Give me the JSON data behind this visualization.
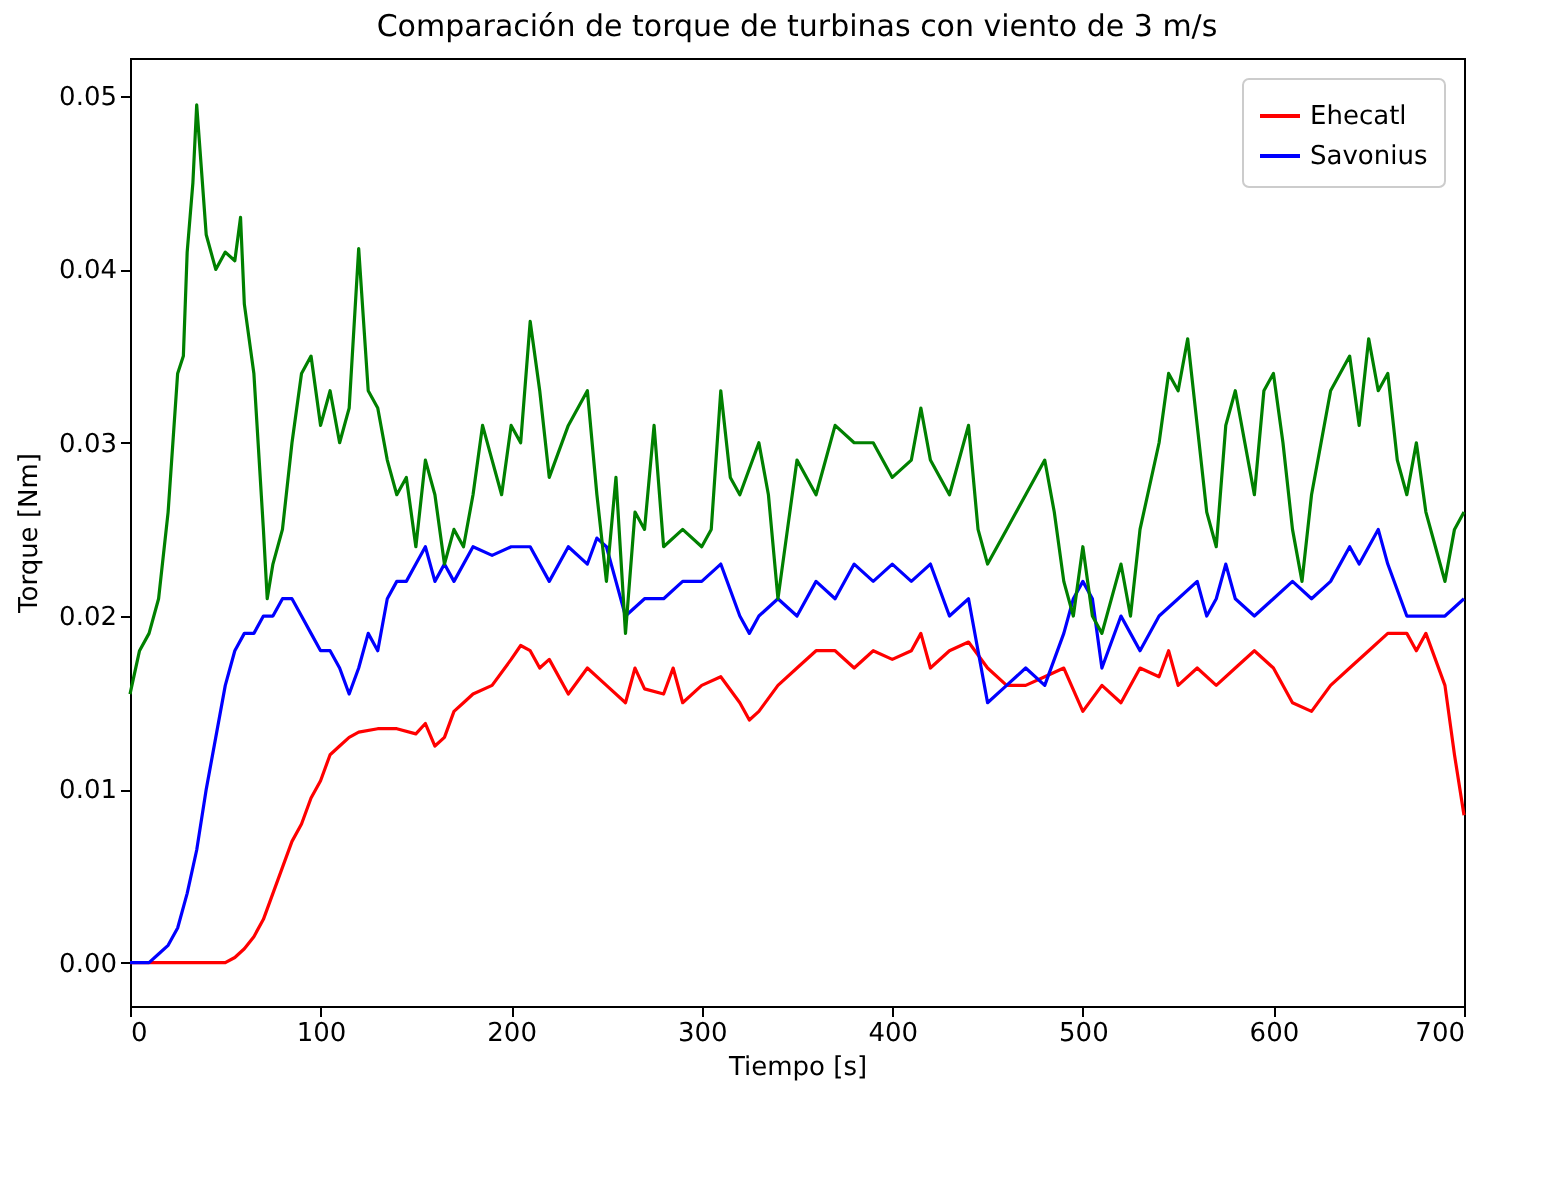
{
  "chart_data": {
    "type": "line",
    "title": "Comparación de torque de turbinas con viento de 3 m/s",
    "xlabel": "Tiempo [s]",
    "ylabel": "Torque [Nm]",
    "xlim": [
      0,
      700
    ],
    "ylim": [
      -0.0025,
      0.0522
    ],
    "xticks": [
      0,
      100,
      200,
      300,
      400,
      500,
      600,
      700
    ],
    "yticks": [
      {
        "value": 0,
        "label": "0.00"
      },
      {
        "value": 0.01,
        "label": "0.01"
      },
      {
        "value": 0.02,
        "label": "0.02"
      },
      {
        "value": 0.03,
        "label": "0.03"
      },
      {
        "value": 0.04,
        "label": "0.04"
      },
      {
        "value": 0.05,
        "label": "0.05"
      }
    ],
    "grid": false,
    "legend": "top right",
    "line_style": "solid",
    "marker": "none",
    "series": [
      {
        "name": "Ehecatl",
        "color": "#ff0000",
        "x": [
          0,
          50,
          55,
          60,
          65,
          70,
          75,
          80,
          85,
          90,
          95,
          100,
          105,
          110,
          115,
          120,
          130,
          140,
          150,
          155,
          160,
          165,
          170,
          175,
          180,
          190,
          200,
          205,
          210,
          215,
          220,
          230,
          240,
          250,
          260,
          265,
          270,
          280,
          285,
          290,
          300,
          310,
          320,
          325,
          330,
          340,
          350,
          360,
          370,
          380,
          390,
          400,
          410,
          415,
          420,
          430,
          440,
          450,
          460,
          470,
          480,
          490,
          500,
          510,
          520,
          530,
          540,
          545,
          550,
          560,
          570,
          580,
          590,
          600,
          610,
          620,
          630,
          640,
          650,
          660,
          670,
          675,
          680,
          690,
          695,
          700
        ],
        "values": [
          0,
          0,
          0.0003,
          0.0008,
          0.0015,
          0.0025,
          0.004,
          0.0055,
          0.007,
          0.008,
          0.0095,
          0.0105,
          0.012,
          0.0125,
          0.013,
          0.0133,
          0.0135,
          0.0135,
          0.0132,
          0.0138,
          0.0125,
          0.013,
          0.0145,
          0.015,
          0.0155,
          0.016,
          0.0175,
          0.0183,
          0.018,
          0.017,
          0.0175,
          0.0155,
          0.017,
          0.016,
          0.015,
          0.017,
          0.0158,
          0.0155,
          0.017,
          0.015,
          0.016,
          0.0165,
          0.015,
          0.014,
          0.0145,
          0.016,
          0.017,
          0.018,
          0.018,
          0.017,
          0.018,
          0.0175,
          0.018,
          0.019,
          0.017,
          0.018,
          0.0185,
          0.017,
          0.016,
          0.016,
          0.0165,
          0.017,
          0.0145,
          0.016,
          0.015,
          0.017,
          0.0165,
          0.018,
          0.016,
          0.017,
          0.016,
          0.017,
          0.018,
          0.017,
          0.015,
          0.0145,
          0.016,
          0.017,
          0.018,
          0.019,
          0.019,
          0.018,
          0.019,
          0.016,
          0.012,
          0.0085
        ]
      },
      {
        "name": "Savonius",
        "color": "#0000ff",
        "x": [
          0,
          10,
          15,
          20,
          25,
          30,
          35,
          40,
          45,
          50,
          55,
          60,
          65,
          70,
          75,
          80,
          85,
          90,
          95,
          100,
          105,
          110,
          115,
          120,
          125,
          130,
          135,
          140,
          145,
          150,
          155,
          160,
          165,
          170,
          180,
          190,
          200,
          210,
          220,
          230,
          240,
          245,
          250,
          255,
          260,
          270,
          280,
          290,
          300,
          310,
          320,
          325,
          330,
          340,
          350,
          360,
          370,
          380,
          390,
          400,
          410,
          420,
          430,
          440,
          445,
          450,
          460,
          470,
          480,
          490,
          495,
          500,
          505,
          510,
          520,
          525,
          530,
          540,
          550,
          560,
          565,
          570,
          575,
          580,
          590,
          600,
          610,
          620,
          630,
          640,
          645,
          650,
          655,
          660,
          670,
          680,
          690,
          700
        ],
        "values": [
          0,
          0,
          0.0005,
          0.001,
          0.002,
          0.004,
          0.0065,
          0.01,
          0.013,
          0.016,
          0.018,
          0.019,
          0.019,
          0.02,
          0.02,
          0.021,
          0.021,
          0.02,
          0.019,
          0.018,
          0.018,
          0.017,
          0.0155,
          0.017,
          0.019,
          0.018,
          0.021,
          0.022,
          0.022,
          0.023,
          0.024,
          0.022,
          0.023,
          0.022,
          0.024,
          0.0235,
          0.024,
          0.024,
          0.022,
          0.024,
          0.023,
          0.0245,
          0.024,
          0.022,
          0.02,
          0.021,
          0.021,
          0.022,
          0.022,
          0.023,
          0.02,
          0.019,
          0.02,
          0.021,
          0.02,
          0.022,
          0.021,
          0.023,
          0.022,
          0.023,
          0.022,
          0.023,
          0.02,
          0.021,
          0.018,
          0.015,
          0.016,
          0.017,
          0.016,
          0.019,
          0.021,
          0.022,
          0.021,
          0.017,
          0.02,
          0.019,
          0.018,
          0.02,
          0.021,
          0.022,
          0.02,
          0.021,
          0.023,
          0.021,
          0.02,
          0.021,
          0.022,
          0.021,
          0.022,
          0.024,
          0.023,
          0.024,
          0.025,
          0.023,
          0.02,
          0.02,
          0.02,
          0.021
        ]
      },
      {
        "color": "#008000",
        "x": [
          0,
          5,
          10,
          15,
          20,
          25,
          28,
          30,
          33,
          35,
          38,
          40,
          45,
          50,
          55,
          58,
          60,
          65,
          70,
          72,
          75,
          80,
          85,
          90,
          95,
          100,
          105,
          110,
          115,
          120,
          125,
          130,
          135,
          140,
          145,
          150,
          155,
          160,
          165,
          170,
          175,
          180,
          185,
          190,
          195,
          200,
          205,
          210,
          215,
          220,
          230,
          240,
          245,
          250,
          255,
          260,
          265,
          270,
          275,
          280,
          290,
          300,
          305,
          310,
          315,
          320,
          330,
          335,
          340,
          345,
          350,
          360,
          370,
          380,
          390,
          400,
          410,
          415,
          420,
          430,
          440,
          445,
          450,
          460,
          470,
          480,
          485,
          490,
          495,
          500,
          505,
          510,
          520,
          525,
          530,
          540,
          545,
          550,
          555,
          560,
          565,
          570,
          575,
          580,
          585,
          590,
          595,
          600,
          605,
          610,
          615,
          620,
          625,
          630,
          640,
          645,
          650,
          655,
          660,
          665,
          670,
          675,
          680,
          685,
          690,
          695,
          700
        ],
        "values": [
          0.0155,
          0.018,
          0.019,
          0.021,
          0.026,
          0.034,
          0.035,
          0.041,
          0.045,
          0.0495,
          0.045,
          0.042,
          0.04,
          0.041,
          0.0405,
          0.043,
          0.038,
          0.034,
          0.025,
          0.021,
          0.023,
          0.025,
          0.03,
          0.034,
          0.035,
          0.031,
          0.033,
          0.03,
          0.032,
          0.0412,
          0.033,
          0.032,
          0.029,
          0.027,
          0.028,
          0.024,
          0.029,
          0.027,
          0.023,
          0.025,
          0.024,
          0.027,
          0.031,
          0.029,
          0.027,
          0.031,
          0.03,
          0.037,
          0.033,
          0.028,
          0.031,
          0.033,
          0.027,
          0.022,
          0.028,
          0.019,
          0.026,
          0.025,
          0.031,
          0.024,
          0.025,
          0.024,
          0.025,
          0.033,
          0.028,
          0.027,
          0.03,
          0.027,
          0.021,
          0.025,
          0.029,
          0.027,
          0.031,
          0.03,
          0.03,
          0.028,
          0.029,
          0.032,
          0.029,
          0.027,
          0.031,
          0.025,
          0.023,
          0.025,
          0.027,
          0.029,
          0.026,
          0.022,
          0.02,
          0.024,
          0.02,
          0.019,
          0.023,
          0.02,
          0.025,
          0.03,
          0.034,
          0.033,
          0.036,
          0.031,
          0.026,
          0.024,
          0.031,
          0.033,
          0.03,
          0.027,
          0.033,
          0.034,
          0.03,
          0.025,
          0.022,
          0.027,
          0.03,
          0.033,
          0.035,
          0.031,
          0.036,
          0.033,
          0.034,
          0.029,
          0.027,
          0.03,
          0.026,
          0.024,
          0.022,
          0.025,
          0.026
        ]
      }
    ]
  }
}
